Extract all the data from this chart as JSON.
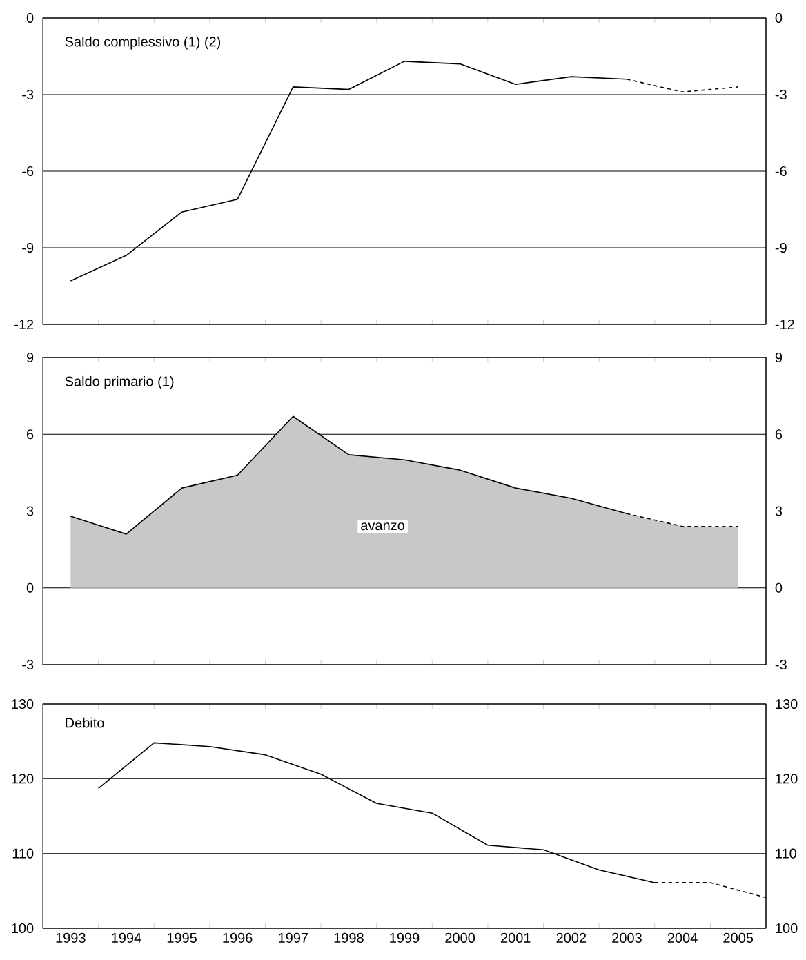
{
  "chart_data": [
    {
      "type": "line",
      "title": "Saldo complessivo (1) (2)",
      "xlim": [
        1992.5,
        2005.5
      ],
      "xticks": [
        1993,
        1994,
        1995,
        1996,
        1997,
        1998,
        1999,
        2000,
        2001,
        2002,
        2003,
        2004,
        2005,
        {
          "value": 1993.5,
          "label": null
        },
        {
          "value": 1994.5,
          "label": null
        },
        {
          "value": 1995.5,
          "label": null
        },
        {
          "value": 1996.5,
          "label": null
        },
        {
          "value": 1997.5,
          "label": null
        },
        {
          "value": 1998.5,
          "label": null
        },
        {
          "value": 1999.5,
          "label": null
        },
        {
          "value": 2000.5,
          "label": null
        },
        {
          "value": 2001.5,
          "label": null
        },
        {
          "value": 2002.5,
          "label": null
        },
        {
          "value": 2003.5,
          "label": null
        },
        {
          "value": 2004.5,
          "label": null
        }
      ],
      "ylim": [
        -12,
        0
      ],
      "yticks": [
        -12,
        -9,
        -6,
        -3,
        0
      ],
      "y2lim": [
        -12,
        0
      ],
      "y2ticks": [
        -12,
        -9,
        -6,
        -3,
        0
      ],
      "grid": "y",
      "tick_labels": "y",
      "series": [
        {
          "color": "#000000",
          "line_style": "solid",
          "x": [
            1993,
            1994,
            1995,
            1996,
            1997,
            1998,
            1999,
            2000,
            2001,
            2002,
            2003
          ],
          "values": [
            -10.3,
            -9.3,
            -7.6,
            -7.1,
            -2.7,
            -2.8,
            -1.7,
            -1.8,
            -2.6,
            -2.3,
            -2.4
          ]
        },
        {
          "color": "#000000",
          "line_style": "dashed",
          "x": [
            2003,
            2004,
            2005
          ],
          "values": [
            -2.4,
            -2.9,
            -2.7
          ]
        }
      ]
    },
    {
      "type": "area",
      "title": "Saldo primario (1)",
      "annotations": [
        "avanzo"
      ],
      "xlim": [
        1992.5,
        2005.5
      ],
      "xticks": [
        1993,
        1994,
        1995,
        1996,
        1997,
        1998,
        1999,
        2000,
        2001,
        2002,
        2003,
        2004,
        2005,
        {
          "value": 1993.5,
          "label": null
        },
        {
          "value": 1994.5,
          "label": null
        },
        {
          "value": 1995.5,
          "label": null
        },
        {
          "value": 1996.5,
          "label": null
        },
        {
          "value": 1997.5,
          "label": null
        },
        {
          "value": 1998.5,
          "label": null
        },
        {
          "value": 1999.5,
          "label": null
        },
        {
          "value": 2000.5,
          "label": null
        },
        {
          "value": 2001.5,
          "label": null
        },
        {
          "value": 2002.5,
          "label": null
        },
        {
          "value": 2003.5,
          "label": null
        },
        {
          "value": 2004.5,
          "label": null
        }
      ],
      "ylim": [
        -3,
        9
      ],
      "yticks": [
        -3,
        0,
        3,
        6,
        9
      ],
      "y2lim": [
        -3,
        9
      ],
      "y2ticks": [
        -3,
        0,
        3,
        6,
        9
      ],
      "grid": "y",
      "tick_labels": "y",
      "series": [
        {
          "color": "#c8c8c8",
          "line_style": "solid",
          "x": [
            1993,
            1994,
            1995,
            1996,
            1997,
            1998,
            1999,
            2000,
            2001,
            2002,
            2003
          ],
          "values": [
            2.8,
            2.1,
            3.9,
            4.4,
            6.7,
            5.2,
            5.0,
            4.6,
            3.9,
            3.5,
            2.9
          ]
        },
        {
          "color": "#c8c8c8",
          "line_style": "dashed",
          "x": [
            2003,
            2004,
            2005
          ],
          "values": [
            2.9,
            2.4,
            2.4
          ]
        }
      ]
    },
    {
      "type": "line",
      "title": "Debito",
      "xlim": [
        1992.5,
        2005.5
      ],
      "xticks": [
        1993,
        1994,
        1995,
        1996,
        1997,
        1998,
        1999,
        2000,
        2001,
        2002,
        2003,
        2004,
        2005,
        {
          "value": 1993.5,
          "label": null
        },
        {
          "value": 1994.5,
          "label": null
        },
        {
          "value": 1995.5,
          "label": null
        },
        {
          "value": 1996.5,
          "label": null
        },
        {
          "value": 1997.5,
          "label": null
        },
        {
          "value": 1998.5,
          "label": null
        },
        {
          "value": 1999.5,
          "label": null
        },
        {
          "value": 2000.5,
          "label": null
        },
        {
          "value": 2001.5,
          "label": null
        },
        {
          "value": 2002.5,
          "label": null
        },
        {
          "value": 2003.5,
          "label": null
        },
        {
          "value": 2004.5,
          "label": null
        }
      ],
      "ylim": [
        100,
        130
      ],
      "yticks": [
        100,
        110,
        120,
        130
      ],
      "y2lim": [
        100,
        130
      ],
      "y2ticks": [
        100,
        110,
        120,
        130
      ],
      "grid": "y",
      "series": [
        {
          "color": "#000000",
          "line_style": "solid",
          "x": [
            1993.5,
            1994.5,
            1995.5,
            1996.5,
            1997.5,
            1998.5,
            1999.5,
            2000.5,
            2001.5,
            2002.5,
            2003.5
          ],
          "values": [
            118.7,
            124.8,
            124.3,
            123.2,
            120.6,
            116.7,
            115.4,
            111.1,
            110.5,
            107.8,
            106.1
          ]
        },
        {
          "color": "#000000",
          "line_style": "dashed",
          "x": [
            2003.5,
            2004.5,
            2005.5
          ],
          "values": [
            106.1,
            106.1,
            104.1
          ]
        }
      ]
    }
  ]
}
